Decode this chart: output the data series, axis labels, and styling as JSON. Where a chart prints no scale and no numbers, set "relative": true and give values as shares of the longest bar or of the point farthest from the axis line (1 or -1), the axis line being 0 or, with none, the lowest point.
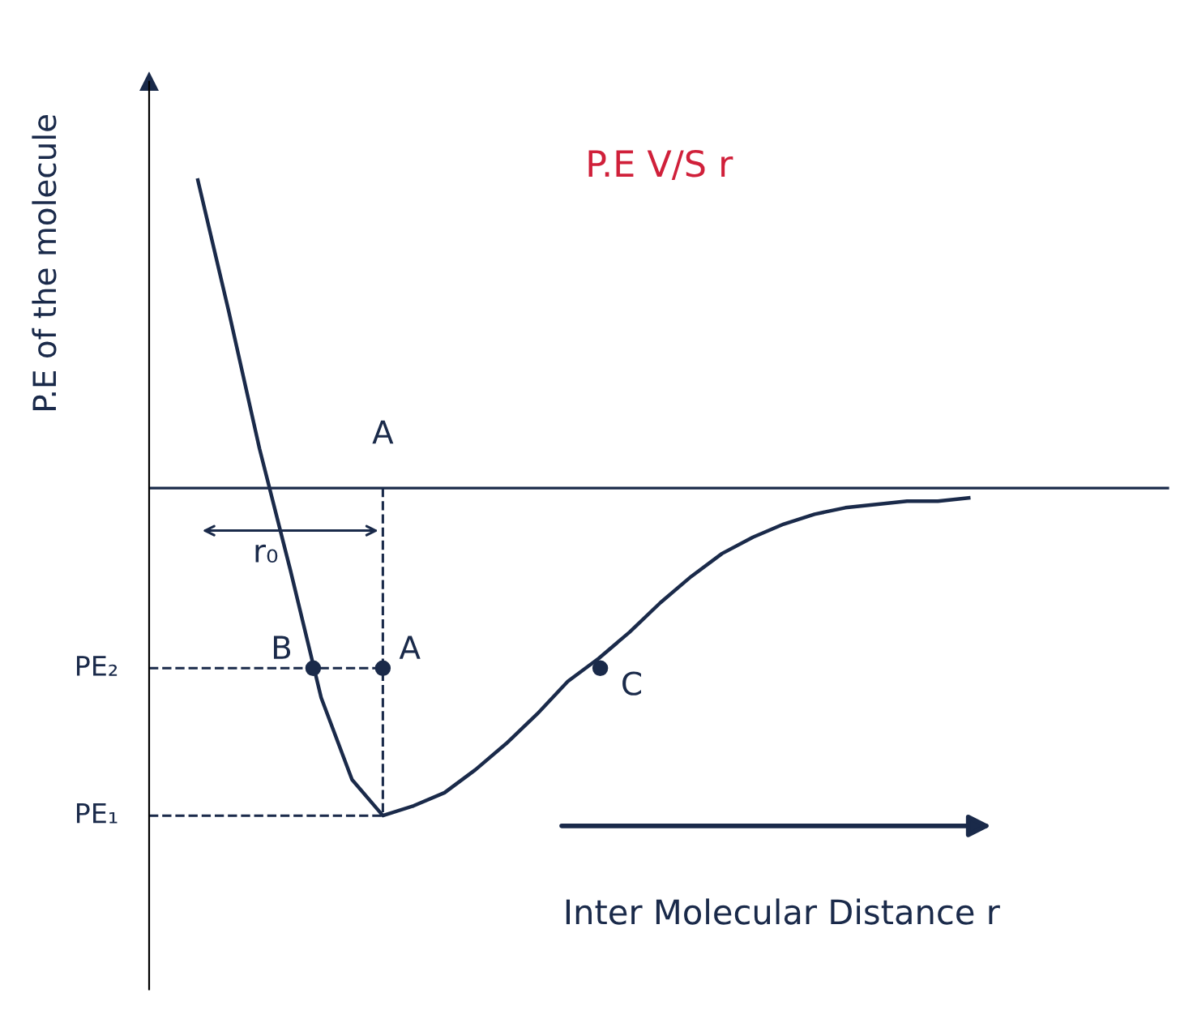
{
  "chart_data": {
    "type": "line",
    "relative": true,
    "title": "P.E V/S r",
    "xlabel": "Inter Molecular Distance r",
    "ylabel": "P.E of the molecule",
    "categories": [
      null,
      null,
      null,
      null,
      null,
      null,
      null,
      null,
      null,
      null,
      null,
      null,
      null,
      null,
      null,
      null,
      null,
      null,
      null,
      null,
      null,
      null,
      null,
      null,
      null,
      null
    ],
    "series": [
      {
        "color": "#1a2a4a",
        "values": [
          0.94,
          0.54,
          0.12,
          -0.25,
          -0.64,
          -0.89,
          -1,
          -0.97,
          -0.93,
          -0.86,
          -0.78,
          -0.69,
          -0.59,
          -0.52,
          -0.44,
          -0.35,
          -0.27,
          -0.2,
          -0.15,
          -0.11,
          -0.08,
          -0.06,
          -0.05,
          -0.04,
          -0.04,
          -0.03
        ]
      }
    ],
    "ref_lines": [
      {
        "axis": "y",
        "value": -0.55,
        "label": "PE₂",
        "line_style": "dashed"
      },
      {
        "axis": "y",
        "value": -1,
        "label": "PE₁",
        "line_style": "dashed"
      }
    ],
    "annotations": [
      "A",
      "r₀",
      "B",
      "A",
      "C"
    ],
    "marker": "none",
    "line_style": "solid"
  }
}
